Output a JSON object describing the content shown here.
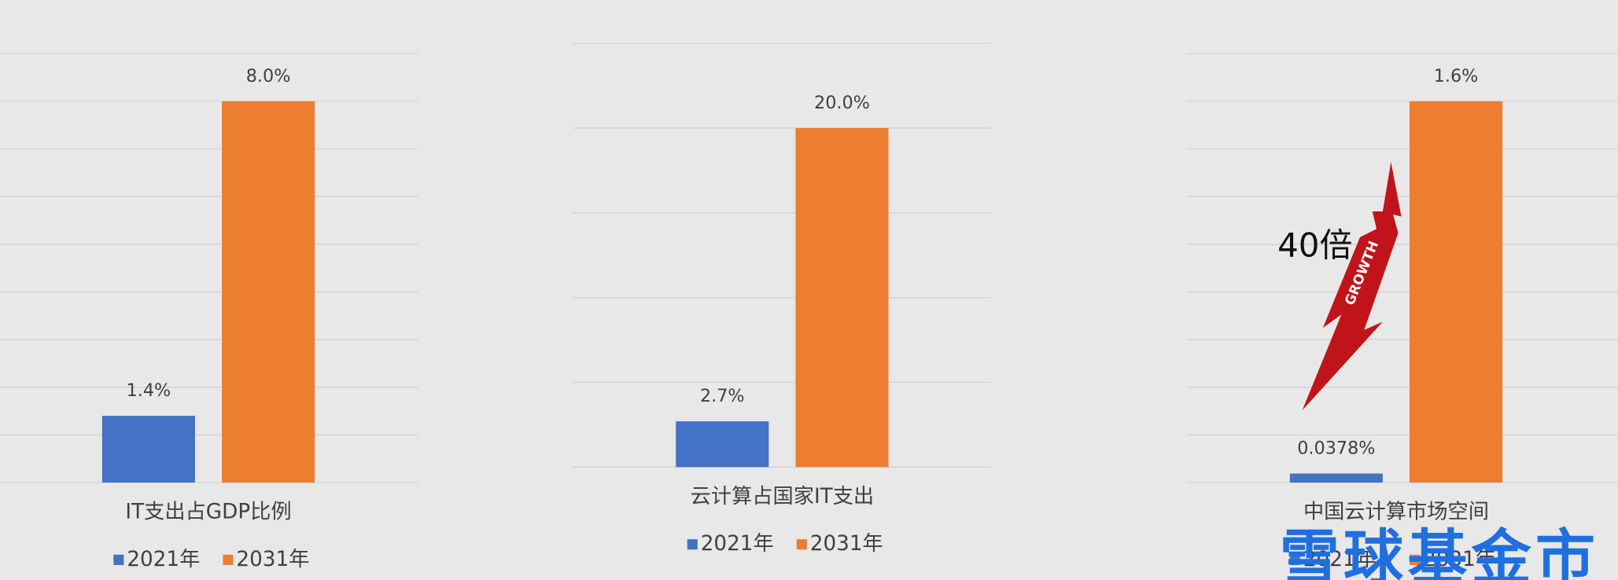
{
  "chart_data": [
    {
      "type": "bar",
      "x_label": "IT支出占GDP比例",
      "ylim": [
        0,
        9
      ],
      "yticks": [
        0,
        1,
        2,
        3,
        4,
        5,
        6,
        7,
        8,
        9
      ],
      "grid": true,
      "series": [
        {
          "name": "2021年",
          "color": "#4472c4",
          "values": [
            1.4
          ],
          "value_labels": [
            "1.4%"
          ]
        },
        {
          "name": "2031年",
          "color": "#ed7d31",
          "values": [
            8.0
          ],
          "value_labels": [
            "8.0%"
          ]
        }
      ]
    },
    {
      "type": "bar",
      "x_label": "云计算占国家IT支出",
      "ylim": [
        0,
        25
      ],
      "yticks": [
        0,
        5,
        10,
        15,
        20,
        25
      ],
      "grid": true,
      "series": [
        {
          "name": "2021年",
          "color": "#4472c4",
          "values": [
            2.7
          ],
          "value_labels": [
            "2.7%"
          ]
        },
        {
          "name": "2031年",
          "color": "#ed7d31",
          "values": [
            20.0
          ],
          "value_labels": [
            "20.0%"
          ]
        }
      ]
    },
    {
      "type": "bar",
      "x_label": "中国云计算市场空间",
      "ylim": [
        0,
        1.8
      ],
      "yticks": [
        0,
        0.2,
        0.4,
        0.6,
        0.8,
        1.0,
        1.2,
        1.4,
        1.6,
        1.8
      ],
      "grid": true,
      "annotation": "40倍",
      "arrow_label": "GROWTH",
      "series": [
        {
          "name": "2021年",
          "color": "#4472c4",
          "values": [
            0.0378
          ],
          "value_labels": [
            "0.0378%"
          ]
        },
        {
          "name": "2031年",
          "color": "#ed7d31",
          "values": [
            1.6
          ],
          "value_labels": [
            "1.6%"
          ]
        }
      ]
    }
  ],
  "watermark": "雪球基金市"
}
